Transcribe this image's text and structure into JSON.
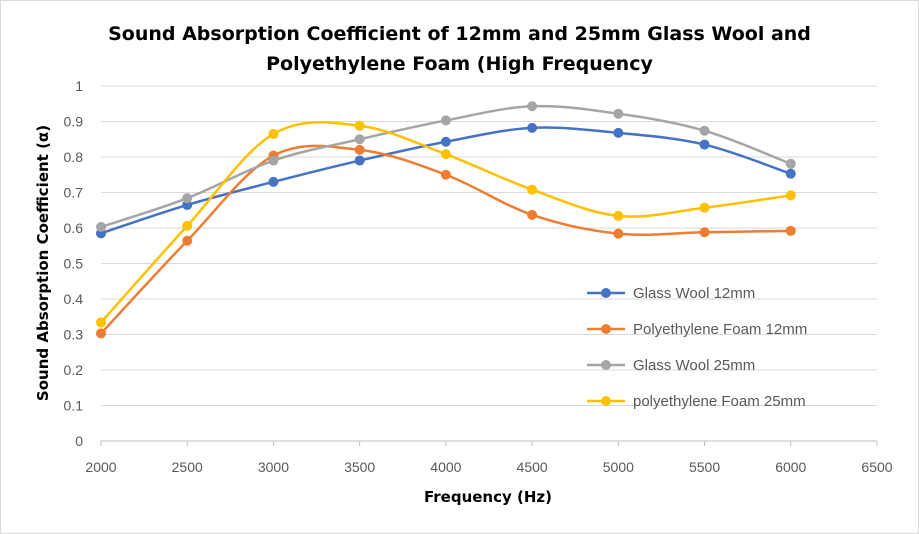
{
  "chart_data": {
    "type": "line",
    "title_lines": [
      "Sound Absorption Coefficient of 12mm and 25mm Glass Wool and",
      "Polyethylene Foam (High Frequency"
    ],
    "xlabel": "Frequency (Hz)",
    "ylabel": "Sound Absorption Coefficient (α)",
    "x": [
      2000,
      2500,
      3000,
      3500,
      4000,
      4500,
      5000,
      5500,
      6000
    ],
    "xlim": [
      2000,
      6500
    ],
    "ylim": [
      0,
      1
    ],
    "x_ticks": [
      "2000",
      "2500",
      "3000",
      "3500",
      "4000",
      "4500",
      "5000",
      "5500",
      "6000",
      "6500"
    ],
    "y_ticks": [
      "0",
      "0.1",
      "0.2",
      "0.3",
      "0.4",
      "0.5",
      "0.6",
      "0.7",
      "0.8",
      "0.9",
      "1"
    ],
    "grid": "horizontal",
    "smooth": true,
    "legend_position": "right",
    "series": [
      {
        "name": " Glass Wool 12mm",
        "color": "#4472c4",
        "values": [
          0.585,
          0.665,
          0.73,
          0.79,
          0.843,
          0.882,
          0.868,
          0.835,
          0.753
        ]
      },
      {
        "name": "Polyethylene Foam 12mm",
        "color": "#ed7d31",
        "values": [
          0.303,
          0.564,
          0.804,
          0.82,
          0.75,
          0.637,
          0.584,
          0.588,
          0.592
        ]
      },
      {
        "name": "Glass Wool 25mm",
        "color": "#a5a5a5",
        "values": [
          0.603,
          0.684,
          0.79,
          0.85,
          0.903,
          0.943,
          0.922,
          0.874,
          0.781
        ]
      },
      {
        "name": "polyethylene Foam 25mm",
        "color": "#ffc000",
        "values": [
          0.334,
          0.606,
          0.865,
          0.888,
          0.808,
          0.708,
          0.634,
          0.657,
          0.692
        ]
      }
    ]
  }
}
